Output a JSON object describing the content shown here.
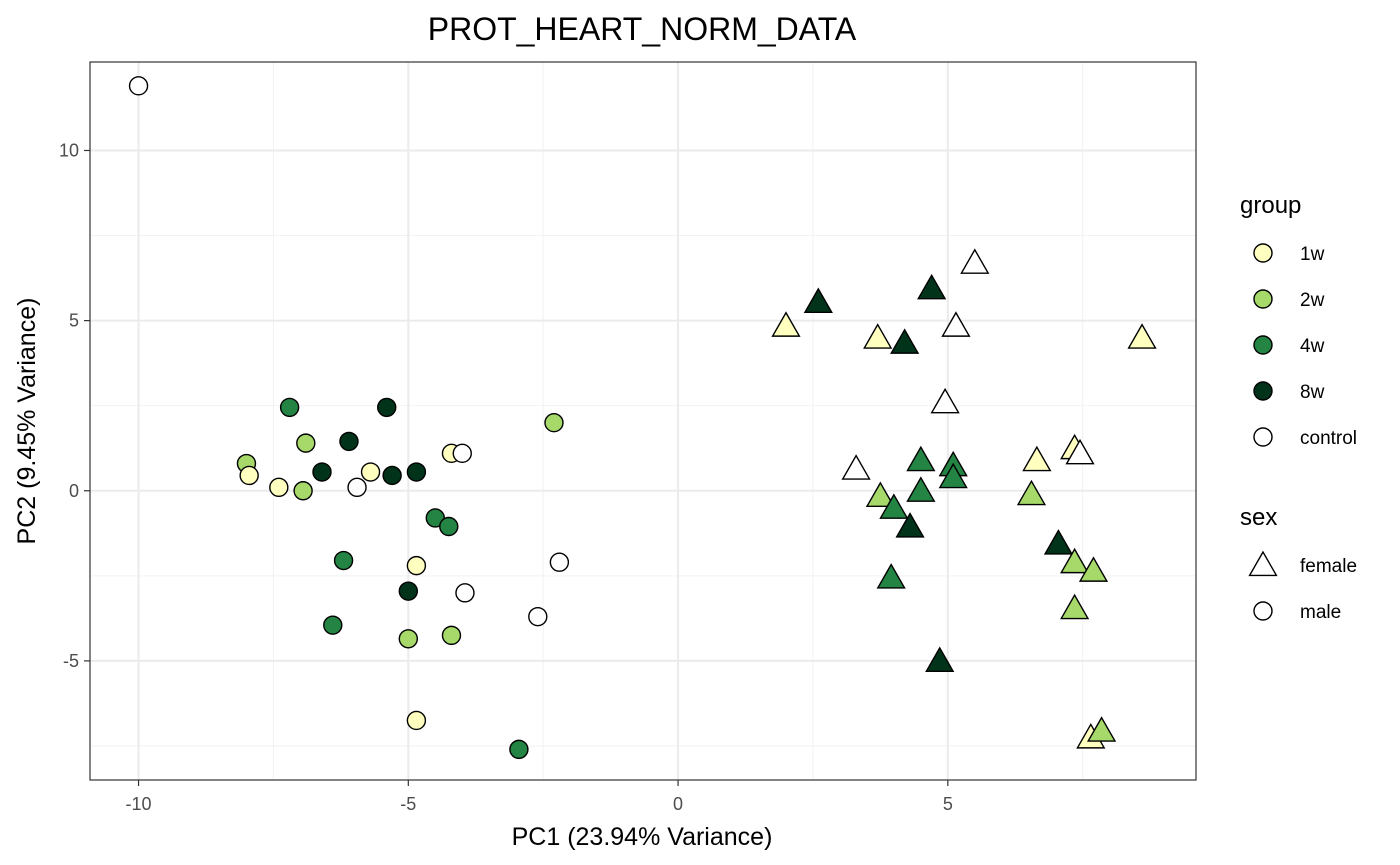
{
  "chart_data": {
    "type": "scatter",
    "title": "PROT_HEART_NORM_DATA",
    "xlabel": "PC1 (23.94% Variance)",
    "ylabel": "PC2 (9.45% Variance)",
    "xlim": [
      -10.9,
      9.6
    ],
    "ylim": [
      -8.5,
      12.6
    ],
    "x_ticks": [
      -10,
      -5,
      0,
      5
    ],
    "y_ticks": [
      -5,
      0,
      5,
      10
    ],
    "x_tick_labels": [
      "-10",
      "-5",
      "0",
      "5"
    ],
    "y_tick_labels": [
      "-5",
      "0",
      "5",
      "10"
    ],
    "grid": true,
    "legend_position": "right",
    "legends": [
      {
        "title": "group",
        "entries": [
          {
            "label": "1w",
            "color": "#ffffbf"
          },
          {
            "label": "2w",
            "color": "#a6d96a"
          },
          {
            "label": "4w",
            "color": "#238443"
          },
          {
            "label": "8w",
            "color": "#00331a"
          },
          {
            "label": "control",
            "color": "#ffffff"
          }
        ]
      },
      {
        "title": "sex",
        "entries": [
          {
            "label": "female",
            "shape": "triangle"
          },
          {
            "label": "male",
            "shape": "circle"
          }
        ]
      }
    ],
    "points": [
      {
        "x": -10.0,
        "y": 11.9,
        "group": "control",
        "sex": "male"
      },
      {
        "x": -8.0,
        "y": 0.8,
        "group": "2w",
        "sex": "male"
      },
      {
        "x": -7.95,
        "y": 0.45,
        "group": "1w",
        "sex": "male"
      },
      {
        "x": -7.2,
        "y": 2.45,
        "group": "4w",
        "sex": "male"
      },
      {
        "x": -7.4,
        "y": 0.1,
        "group": "1w",
        "sex": "male"
      },
      {
        "x": -6.9,
        "y": 1.4,
        "group": "2w",
        "sex": "male"
      },
      {
        "x": -6.95,
        "y": 0.0,
        "group": "2w",
        "sex": "male"
      },
      {
        "x": -6.6,
        "y": 0.55,
        "group": "8w",
        "sex": "male"
      },
      {
        "x": -6.1,
        "y": 1.45,
        "group": "8w",
        "sex": "male"
      },
      {
        "x": -5.4,
        "y": 2.45,
        "group": "8w",
        "sex": "male"
      },
      {
        "x": -5.95,
        "y": 0.1,
        "group": "control",
        "sex": "male"
      },
      {
        "x": -5.7,
        "y": 0.55,
        "group": "1w",
        "sex": "male"
      },
      {
        "x": -5.3,
        "y": 0.45,
        "group": "8w",
        "sex": "male"
      },
      {
        "x": -4.85,
        "y": 0.55,
        "group": "8w",
        "sex": "male"
      },
      {
        "x": -4.2,
        "y": 1.1,
        "group": "1w",
        "sex": "male"
      },
      {
        "x": -4.0,
        "y": 1.1,
        "group": "control",
        "sex": "male"
      },
      {
        "x": -2.3,
        "y": 2.0,
        "group": "2w",
        "sex": "male"
      },
      {
        "x": -4.5,
        "y": -0.8,
        "group": "4w",
        "sex": "male"
      },
      {
        "x": -4.25,
        "y": -1.05,
        "group": "4w",
        "sex": "male"
      },
      {
        "x": -6.2,
        "y": -2.05,
        "group": "4w",
        "sex": "male"
      },
      {
        "x": -4.85,
        "y": -2.2,
        "group": "1w",
        "sex": "male"
      },
      {
        "x": -5.0,
        "y": -2.95,
        "group": "8w",
        "sex": "male"
      },
      {
        "x": -3.95,
        "y": -3.0,
        "group": "control",
        "sex": "male"
      },
      {
        "x": -2.2,
        "y": -2.1,
        "group": "control",
        "sex": "male"
      },
      {
        "x": -2.6,
        "y": -3.7,
        "group": "control",
        "sex": "male"
      },
      {
        "x": -6.4,
        "y": -3.95,
        "group": "4w",
        "sex": "male"
      },
      {
        "x": -5.0,
        "y": -4.35,
        "group": "2w",
        "sex": "male"
      },
      {
        "x": -4.2,
        "y": -4.25,
        "group": "2w",
        "sex": "male"
      },
      {
        "x": -4.85,
        "y": -6.75,
        "group": "1w",
        "sex": "male"
      },
      {
        "x": -2.95,
        "y": -7.6,
        "group": "4w",
        "sex": "male"
      },
      {
        "x": 2.0,
        "y": 4.85,
        "group": "1w",
        "sex": "female"
      },
      {
        "x": 2.6,
        "y": 5.55,
        "group": "8w",
        "sex": "female"
      },
      {
        "x": 3.7,
        "y": 4.5,
        "group": "1w",
        "sex": "female"
      },
      {
        "x": 4.2,
        "y": 4.35,
        "group": "8w",
        "sex": "female"
      },
      {
        "x": 4.7,
        "y": 5.95,
        "group": "8w",
        "sex": "female"
      },
      {
        "x": 5.5,
        "y": 6.7,
        "group": "control",
        "sex": "female"
      },
      {
        "x": 5.15,
        "y": 4.85,
        "group": "control",
        "sex": "female"
      },
      {
        "x": 8.6,
        "y": 4.5,
        "group": "1w",
        "sex": "female"
      },
      {
        "x": 4.95,
        "y": 2.6,
        "group": "control",
        "sex": "female"
      },
      {
        "x": 3.3,
        "y": 0.65,
        "group": "control",
        "sex": "female"
      },
      {
        "x": 3.75,
        "y": -0.15,
        "group": "2w",
        "sex": "female"
      },
      {
        "x": 4.5,
        "y": 0.9,
        "group": "4w",
        "sex": "female"
      },
      {
        "x": 5.1,
        "y": 0.75,
        "group": "4w",
        "sex": "female"
      },
      {
        "x": 5.1,
        "y": 0.4,
        "group": "4w",
        "sex": "female"
      },
      {
        "x": 4.5,
        "y": 0.0,
        "group": "4w",
        "sex": "female"
      },
      {
        "x": 4.0,
        "y": -0.5,
        "group": "4w",
        "sex": "female"
      },
      {
        "x": 4.3,
        "y": -1.05,
        "group": "8w",
        "sex": "female"
      },
      {
        "x": 3.95,
        "y": -2.55,
        "group": "4w",
        "sex": "female"
      },
      {
        "x": 6.65,
        "y": 0.9,
        "group": "1w",
        "sex": "female"
      },
      {
        "x": 7.35,
        "y": 1.25,
        "group": "1w",
        "sex": "female"
      },
      {
        "x": 7.45,
        "y": 1.1,
        "group": "control",
        "sex": "female"
      },
      {
        "x": 6.55,
        "y": -0.1,
        "group": "2w",
        "sex": "female"
      },
      {
        "x": 7.05,
        "y": -1.55,
        "group": "8w",
        "sex": "female"
      },
      {
        "x": 7.35,
        "y": -2.1,
        "group": "2w",
        "sex": "female"
      },
      {
        "x": 7.7,
        "y": -2.35,
        "group": "2w",
        "sex": "female"
      },
      {
        "x": 7.35,
        "y": -3.45,
        "group": "2w",
        "sex": "female"
      },
      {
        "x": 4.85,
        "y": -5.0,
        "group": "8w",
        "sex": "female"
      },
      {
        "x": 7.65,
        "y": -7.25,
        "group": "1w",
        "sex": "female"
      },
      {
        "x": 7.85,
        "y": -7.05,
        "group": "2w",
        "sex": "female"
      }
    ]
  }
}
